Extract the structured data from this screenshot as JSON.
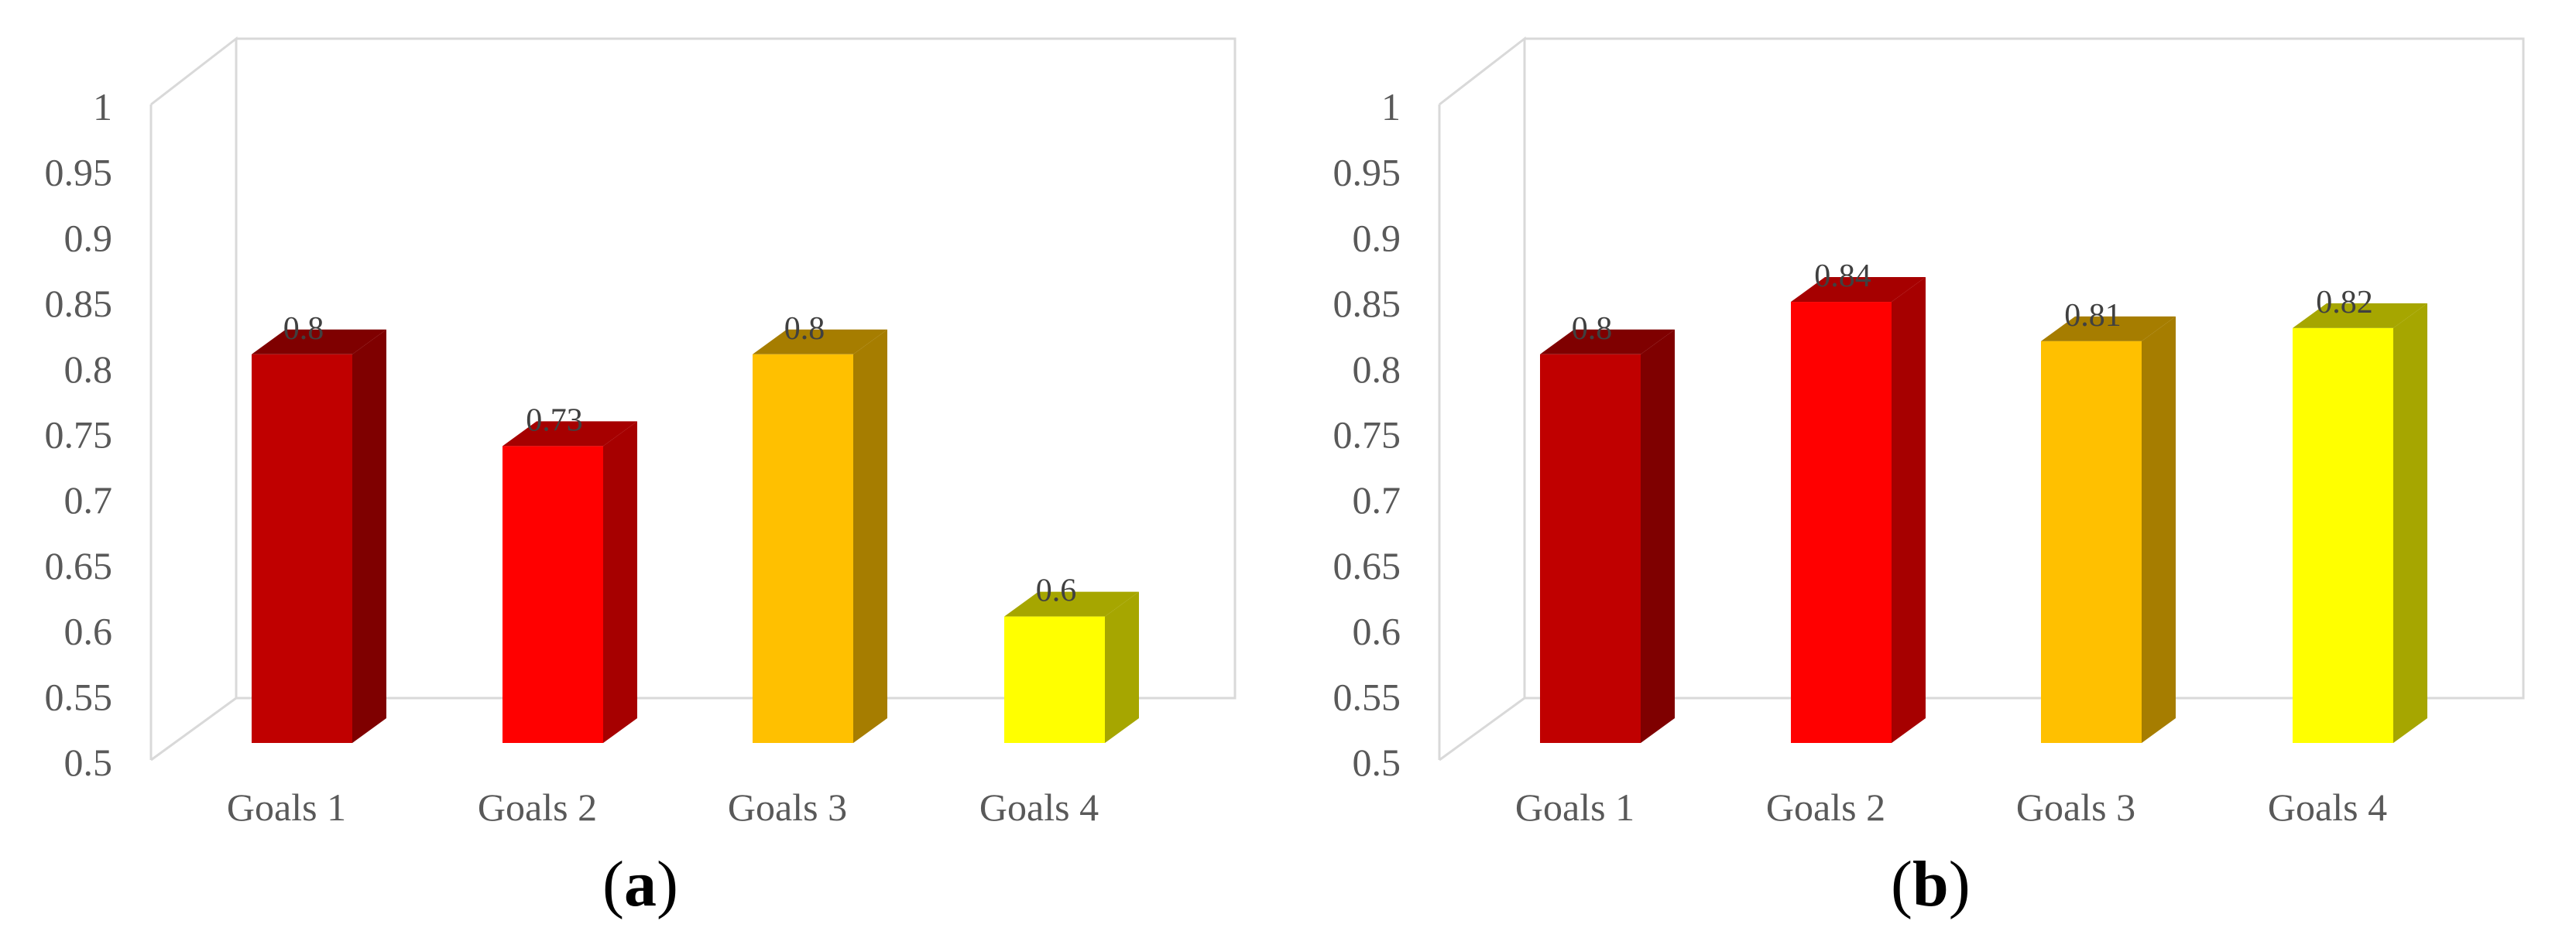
{
  "figure": {
    "label_a": "a",
    "label_b": "b"
  },
  "chart_data": [
    {
      "type": "bar",
      "panel": "a",
      "categories": [
        "Goals 1",
        "Goals 2",
        "Goals 3",
        "Goals 4"
      ],
      "values": [
        0.8,
        0.73,
        0.8,
        0.6
      ],
      "data_labels": [
        "0.8",
        "0.73",
        "0.8",
        "0.6"
      ],
      "colors": [
        "#c00000",
        "#ff0000",
        "#ffc000",
        "#ffff00"
      ],
      "side_colors": [
        "#7f0000",
        "#a60000",
        "#a67d00",
        "#a6a600"
      ],
      "ylim": [
        0.5,
        1
      ],
      "yticks": [
        "0.5",
        "0.55",
        "0.6",
        "0.65",
        "0.7",
        "0.75",
        "0.8",
        "0.85",
        "0.9",
        "0.95",
        "1"
      ],
      "grid": false,
      "three_d": true,
      "title": "",
      "xlabel": "",
      "ylabel": ""
    },
    {
      "type": "bar",
      "panel": "b",
      "categories": [
        "Goals 1",
        "Goals 2",
        "Goals 3",
        "Goals 4"
      ],
      "values": [
        0.8,
        0.84,
        0.81,
        0.82
      ],
      "data_labels": [
        "0.8",
        "0.84",
        "0.81",
        "0.82"
      ],
      "colors": [
        "#c00000",
        "#ff0000",
        "#ffc000",
        "#ffff00"
      ],
      "side_colors": [
        "#7f0000",
        "#a60000",
        "#a67d00",
        "#a6a600"
      ],
      "ylim": [
        0.5,
        1
      ],
      "yticks": [
        "0.5",
        "0.55",
        "0.6",
        "0.65",
        "0.7",
        "0.75",
        "0.8",
        "0.85",
        "0.9",
        "0.95",
        "1"
      ],
      "grid": false,
      "three_d": true,
      "title": "",
      "xlabel": "",
      "ylabel": ""
    }
  ]
}
